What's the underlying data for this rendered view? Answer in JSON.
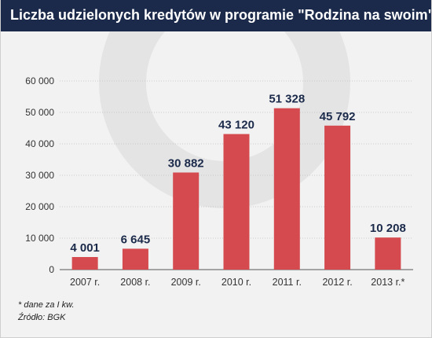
{
  "header": {
    "title": "Liczba udzielonych kredytów w programie \"Rodzina na swoim\""
  },
  "colors": {
    "title_bar": "#1b2a4a",
    "bar": "#d44a4f",
    "value_label": "#1b2a4a",
    "axis_text": "#333333",
    "gridline": "#bdbdbd"
  },
  "chart_data": {
    "type": "bar",
    "title": "Liczba udzielonych kredytów w programie \"Rodzina na swoim\"",
    "xlabel": "",
    "ylabel": "",
    "categories": [
      "2007 r.",
      "2008 r.",
      "2009 r.",
      "2010 r.",
      "2011 r.",
      "2012 r.",
      "2013 r.*"
    ],
    "values": [
      4001,
      6645,
      30882,
      43120,
      51328,
      45792,
      10208
    ],
    "value_labels": [
      "4 001",
      "6 645",
      "30 882",
      "43 120",
      "51 328",
      "45 792",
      "10 208"
    ],
    "ylim": [
      0,
      60000
    ],
    "yticks": [
      0,
      10000,
      20000,
      30000,
      40000,
      50000,
      60000
    ],
    "ytick_labels": [
      "0",
      "10 000",
      "20 000",
      "30 000",
      "40 000",
      "50 000",
      "60 000"
    ],
    "grid": true,
    "legend": "none"
  },
  "notes": {
    "footnote": "* dane za I kw.",
    "source": "Źródło: BGK"
  }
}
